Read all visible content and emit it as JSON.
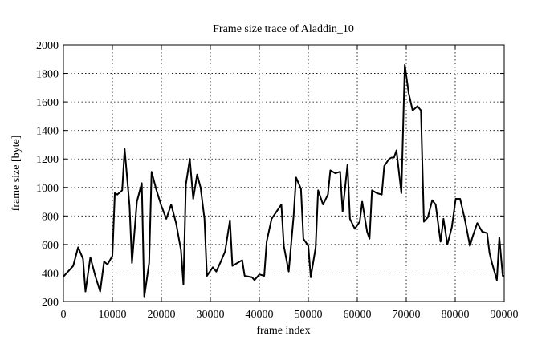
{
  "chart_data": {
    "type": "line",
    "title": "Frame size trace of Aladdin_10",
    "xlabel": "frame index",
    "ylabel": "frame size [byte]",
    "color": "#000000",
    "grid": true,
    "xlim": [
      0,
      90000
    ],
    "ylim": [
      200,
      2000
    ],
    "xticks": [
      0,
      10000,
      20000,
      30000,
      40000,
      50000,
      60000,
      70000,
      80000,
      90000
    ],
    "yticks": [
      200,
      400,
      600,
      800,
      1000,
      1200,
      1400,
      1600,
      1800,
      2000
    ],
    "x": [
      0,
      2000,
      3000,
      4000,
      4500,
      5500,
      6500,
      7500,
      8300,
      9000,
      10000,
      10500,
      11000,
      12000,
      12500,
      13500,
      14000,
      15000,
      16000,
      16500,
      17500,
      18000,
      19000,
      20000,
      21000,
      22000,
      23000,
      24000,
      24500,
      25000,
      25800,
      26500,
      27300,
      28000,
      28800,
      29300,
      30500,
      31200,
      32000,
      33000,
      34000,
      34500,
      35500,
      36500,
      37000,
      38500,
      39000,
      40000,
      41000,
      41500,
      42500,
      43500,
      44500,
      45000,
      46000,
      47000,
      47500,
      48500,
      49000,
      50000,
      50500,
      51500,
      52000,
      53000,
      54000,
      54500,
      55500,
      56500,
      57000,
      58000,
      58500,
      59500,
      60500,
      61000,
      62000,
      62500,
      63000,
      64000,
      65000,
      65500,
      66500,
      67000,
      67500,
      68000,
      69000,
      69700,
      70500,
      71300,
      72300,
      73000,
      73600,
      74400,
      75300,
      76000,
      77000,
      77600,
      78400,
      79300,
      80100,
      81000,
      82000,
      83000,
      83500,
      84500,
      85500,
      86500,
      87000,
      87500,
      88500,
      89000,
      89700,
      90000
    ],
    "values": [
      375,
      450,
      580,
      500,
      270,
      510,
      380,
      270,
      480,
      460,
      520,
      960,
      950,
      980,
      1270,
      870,
      470,
      900,
      1030,
      230,
      470,
      1110,
      980,
      870,
      780,
      880,
      750,
      560,
      320,
      1020,
      1200,
      920,
      1090,
      1000,
      780,
      380,
      440,
      410,
      470,
      550,
      770,
      450,
      470,
      490,
      380,
      370,
      350,
      390,
      380,
      620,
      780,
      830,
      880,
      590,
      410,
      800,
      1070,
      990,
      640,
      590,
      370,
      580,
      980,
      880,
      950,
      1120,
      1100,
      1110,
      830,
      1160,
      780,
      710,
      760,
      900,
      690,
      640,
      980,
      960,
      950,
      1150,
      1200,
      1210,
      1210,
      1260,
      960,
      1860,
      1660,
      1540,
      1570,
      1540,
      760,
      790,
      910,
      880,
      620,
      780,
      600,
      720,
      920,
      920,
      770,
      590,
      650,
      750,
      690,
      680,
      540,
      470,
      350,
      650,
      380,
      380
    ]
  }
}
